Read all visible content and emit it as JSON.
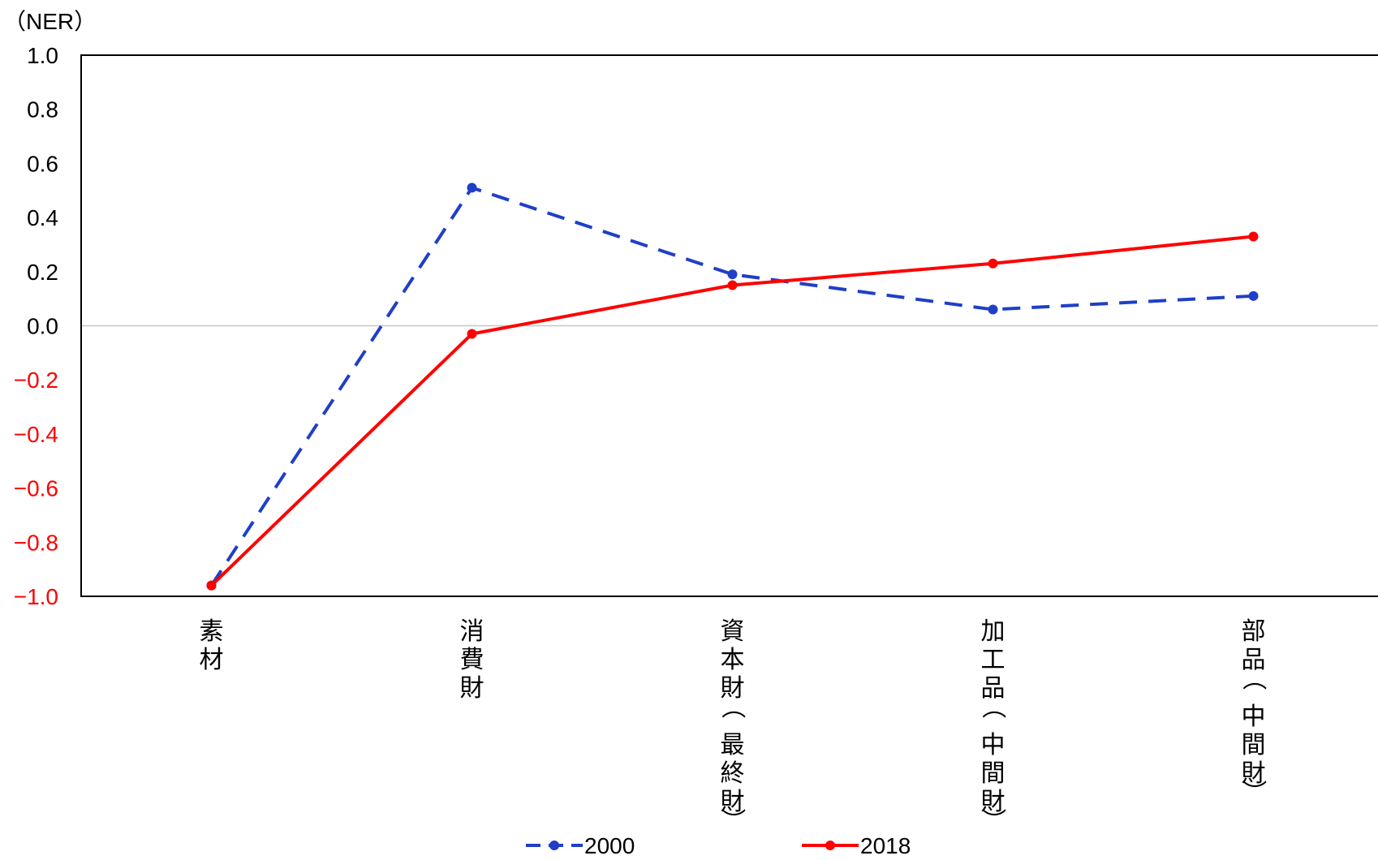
{
  "chart_data": {
    "type": "line",
    "ylabel": "（NER）",
    "categories": [
      "素材",
      "消費財",
      "資本財（最終財）",
      "加工品（中間財）",
      "部品（中間財）"
    ],
    "ylim": [
      -1.0,
      1.0
    ],
    "yticks": [
      "1.0",
      "0.8",
      "0.6",
      "0.4",
      "0.2",
      "0.0",
      "−0.2",
      "−0.4",
      "−0.6",
      "−0.8",
      "−1.0"
    ],
    "ytick_values": [
      1.0,
      0.8,
      0.6,
      0.4,
      0.2,
      0.0,
      -0.2,
      -0.4,
      -0.6,
      -0.8,
      -1.0
    ],
    "grid": false,
    "zero_line": true,
    "legend_position": "bottom",
    "series": [
      {
        "name": "2000",
        "values": [
          -0.96,
          0.51,
          0.19,
          0.06,
          0.11
        ],
        "color": "#1f3fc7",
        "style": "dashed"
      },
      {
        "name": "2018",
        "values": [
          -0.96,
          -0.03,
          0.15,
          0.23,
          0.33
        ],
        "color": "#ff0000",
        "style": "solid"
      }
    ],
    "colors": {
      "positive_tick": "#000000",
      "negative_tick": "#ff0000",
      "zero_line": "#c8c8c8"
    }
  }
}
